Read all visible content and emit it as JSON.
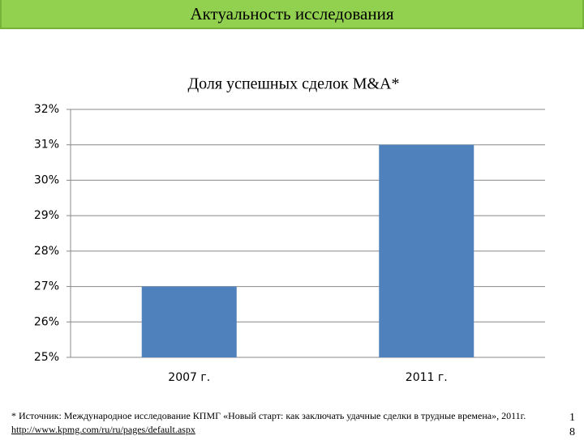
{
  "header": {
    "title": "Актуальность исследования"
  },
  "chart_data": {
    "type": "bar",
    "title": "Доля успешных сделок M&A*",
    "categories": [
      "2007 г.",
      "2011 г."
    ],
    "values": [
      27,
      31
    ],
    "color": "#4f81bd",
    "ylim": [
      25,
      32
    ],
    "yticks": [
      {
        "value": 25,
        "label": "25%"
      },
      {
        "value": 26,
        "label": "26%"
      },
      {
        "value": 27,
        "label": "27%"
      },
      {
        "value": 28,
        "label": "28%"
      },
      {
        "value": 29,
        "label": "29%"
      },
      {
        "value": 30,
        "label": "30%"
      },
      {
        "value": 31,
        "label": "31%"
      },
      {
        "value": 32,
        "label": "32%"
      }
    ],
    "grid": true
  },
  "footnote": {
    "text": "* Источник: Международное исследование КПМГ «Новый старт: как заключать удачные сделки в трудные времена», 2011г. ",
    "link": "http://www.kpmg.com/ru/ru/pages/default.aspx"
  },
  "page_number": "18"
}
